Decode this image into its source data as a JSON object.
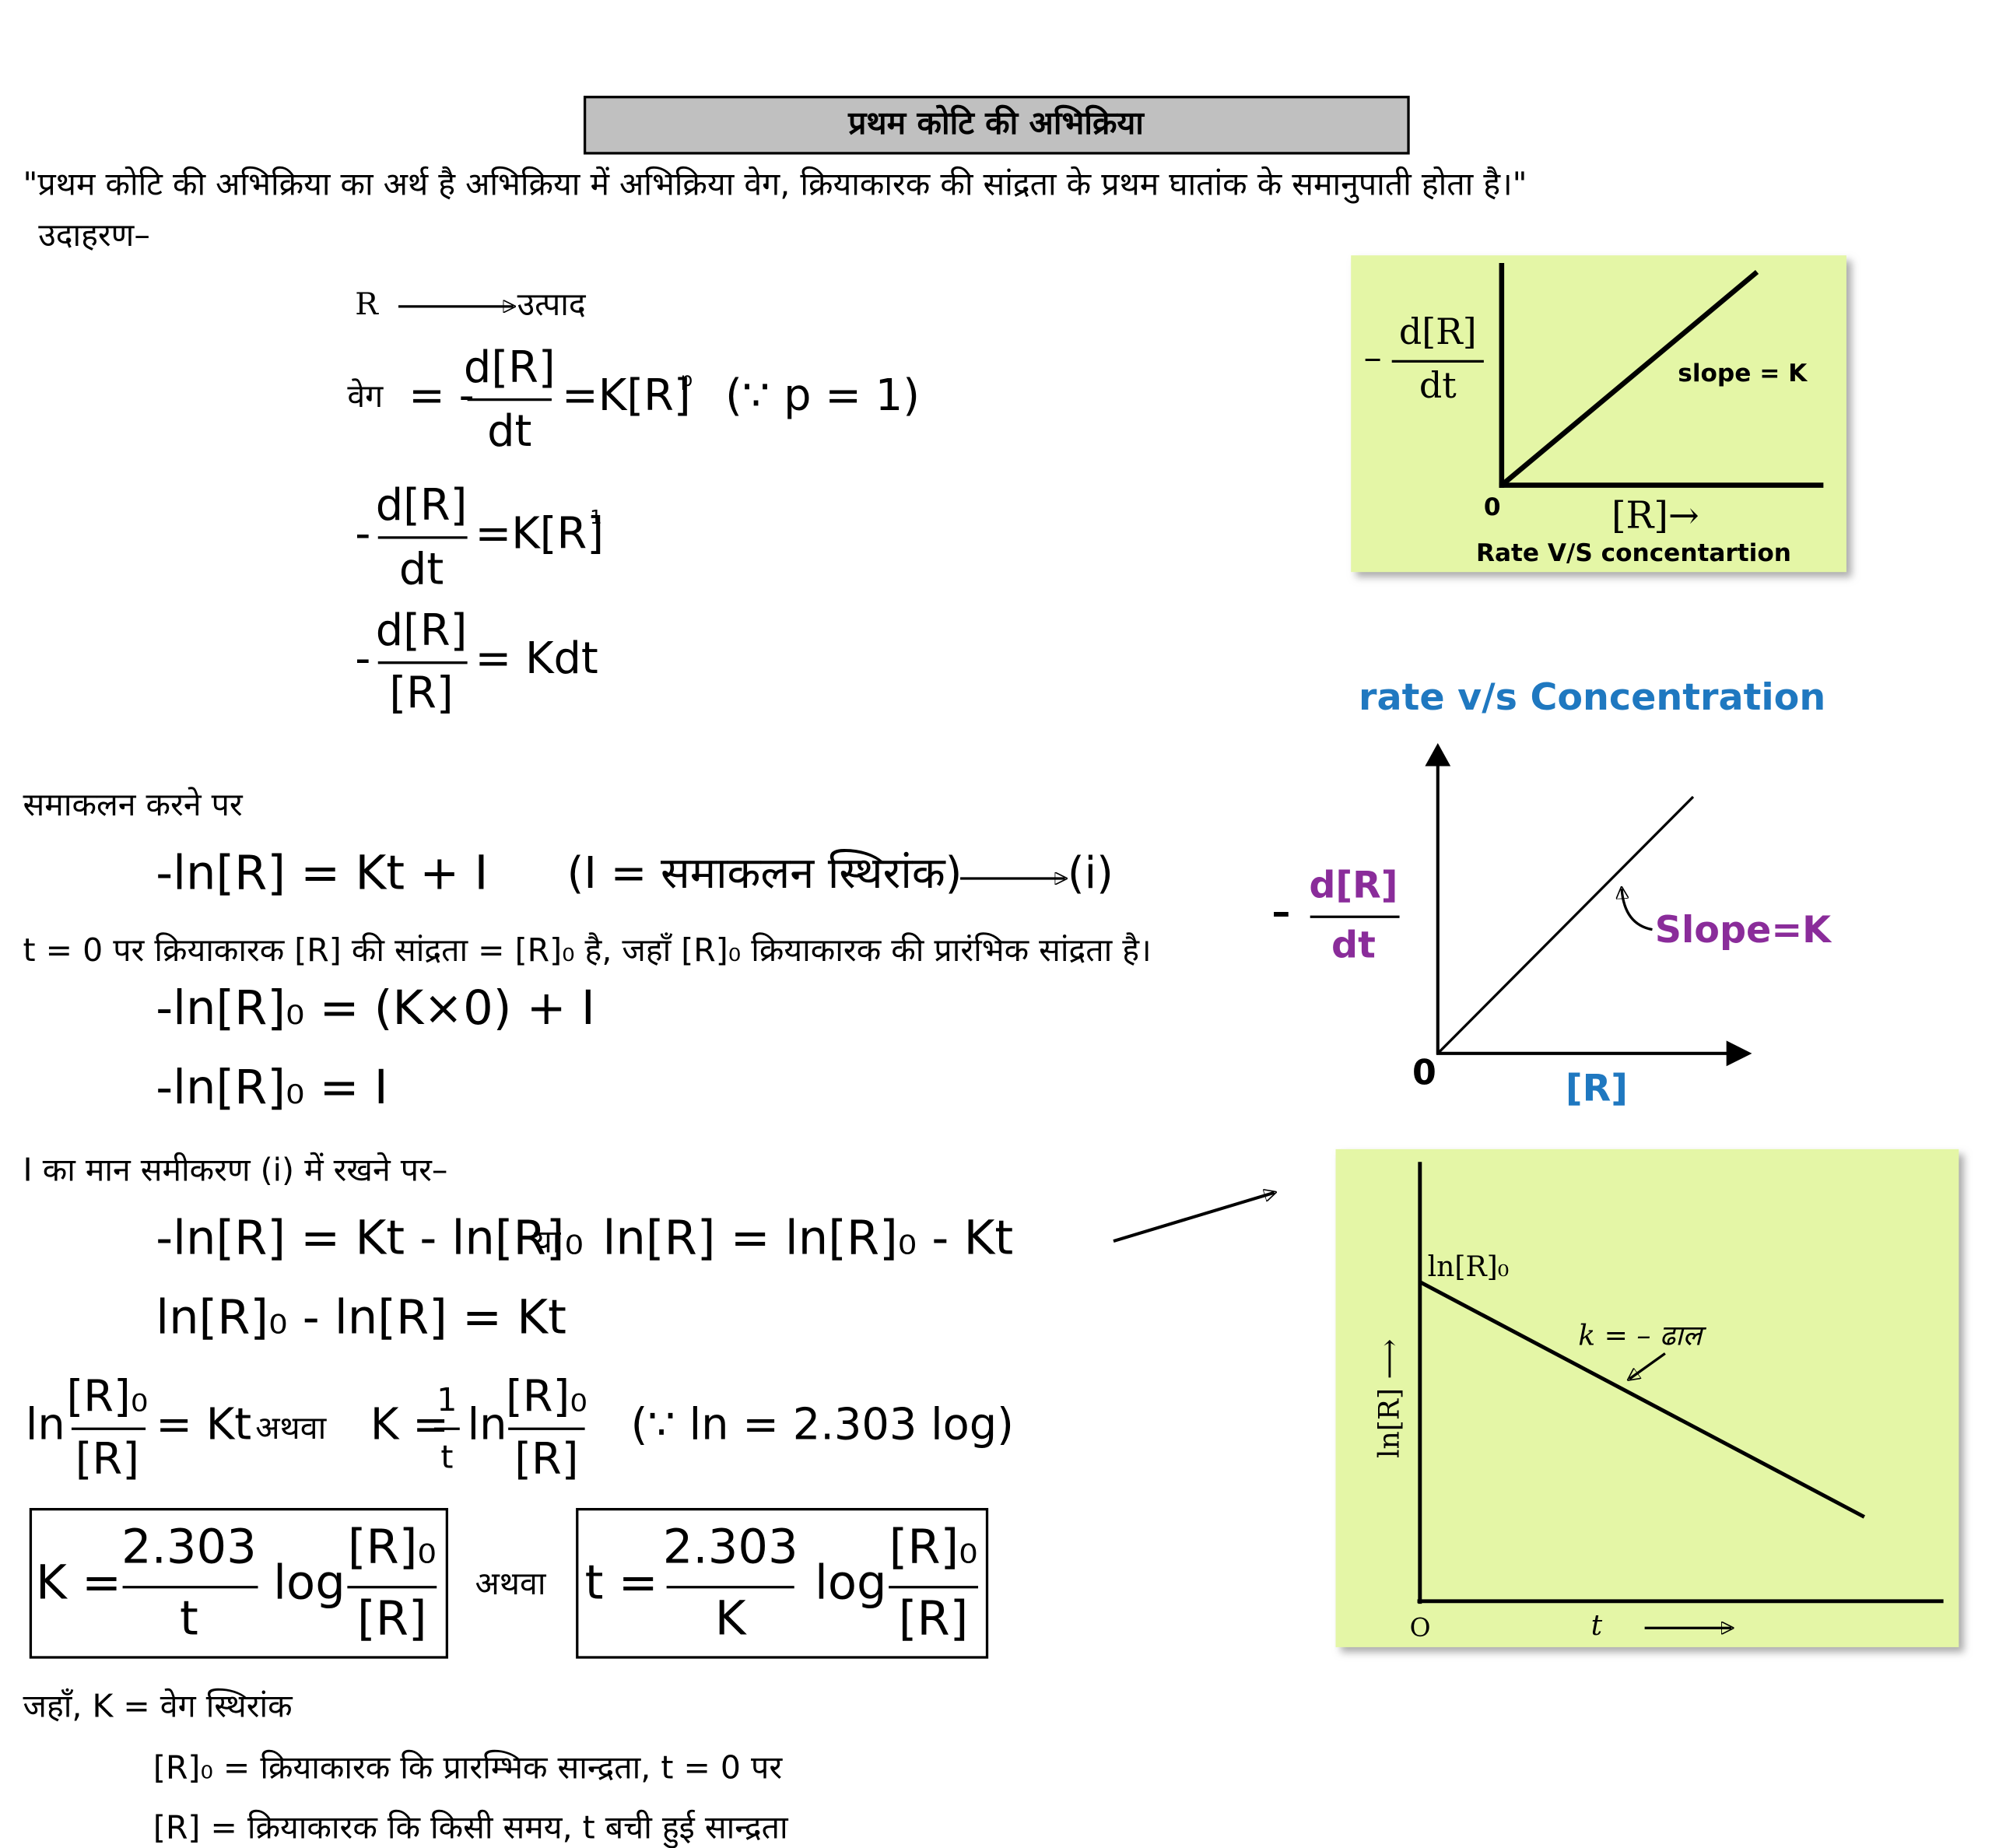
{
  "header": {
    "title": "प्रथम कोटि की अभिक्रिया"
  },
  "definition": "\"प्रथम कोटि की अभिक्रिया का अर्थ है अभिक्रिया में अभिक्रिया वेग, क्रियाकारक की सांद्रता के प्रथम घातांक के समानुपाती होता है।\"",
  "example_label": "उदाहरण–",
  "reaction": {
    "reactant": "R",
    "product": "उत्पाद"
  },
  "rate_equation": [
    "वेग",
    "= -",
    "d[R]",
    "dt",
    "=K[R]",
    "p",
    "(∵ p = 1)"
  ],
  "rate_equation_2": [
    "-",
    "d[R]",
    "dt",
    "=K[R]",
    "1"
  ],
  "rate_equation_3": [
    "-",
    "d[R]",
    "[R]",
    "= Kdt"
  ],
  "integration_label": "समाकलन करने पर",
  "integrated": [
    "-ln[R] = Kt + I",
    "(I =  समाकलन स्थिरांक)",
    "(i)"
  ],
  "initial_condition": "t = 0 पर क्रियाकारक [R] की सांद्रता = [R]₀ है, जहाँ [R]₀ क्रियाकारक की प्रारंभिक सांद्रता है।",
  "initial_eq_1": "-ln[R]₀ = (K×0) + I",
  "initial_eq_2": "-ln[R]₀ = I",
  "substitution_label": "I का मान समीकरण (i) में रखने पर–",
  "substituted": [
    "-ln[R] = Kt - ln[R]₀",
    "या",
    "ln[R] = ln[R]₀ - Kt"
  ],
  "rearranged": "ln[R]₀ - ln[R] = Kt",
  "log_form": [
    "ln",
    "[R]₀",
    "[R]",
    "= Kt",
    "अथवा",
    "K =",
    "1",
    "t",
    "ln",
    "[R]₀",
    "[R]",
    "(∵ ln = 2.303 log)"
  ],
  "boxed_k": [
    "K =",
    "2.303",
    "t",
    "log",
    "[R]₀",
    "[R]"
  ],
  "boxed_or": "अथवा",
  "boxed_t": [
    "t =",
    "2.303",
    "K",
    "log",
    "[R]₀",
    "[R]"
  ],
  "where": [
    "जहाँ, K = वेग स्थिरांक",
    "[R]₀ = क्रियाकारक कि प्रारम्भिक सान्द्रता, t = 0 पर",
    "[R] = क्रियाकारक कि किसी समय, t बची हुई सान्द्रता"
  ],
  "graph_1": {
    "y_label": [
      "–",
      "d[R]",
      "dt"
    ],
    "slope": "slope = K",
    "origin": "0",
    "x_label": "[R]→",
    "caption": "Rate V/S  concentartion"
  },
  "graph_2": {
    "title": "rate v/s Concentration",
    "y_label": [
      "–",
      "d[R]",
      "dt"
    ],
    "slope": "Slope=K",
    "origin": "0",
    "x_label": "[R]"
  },
  "graph_3": {
    "intercept": "ln[R]₀",
    "slope": "k = – ढाल",
    "y_label": "ln[R] ⟶",
    "origin": "O",
    "x_label": "t"
  }
}
